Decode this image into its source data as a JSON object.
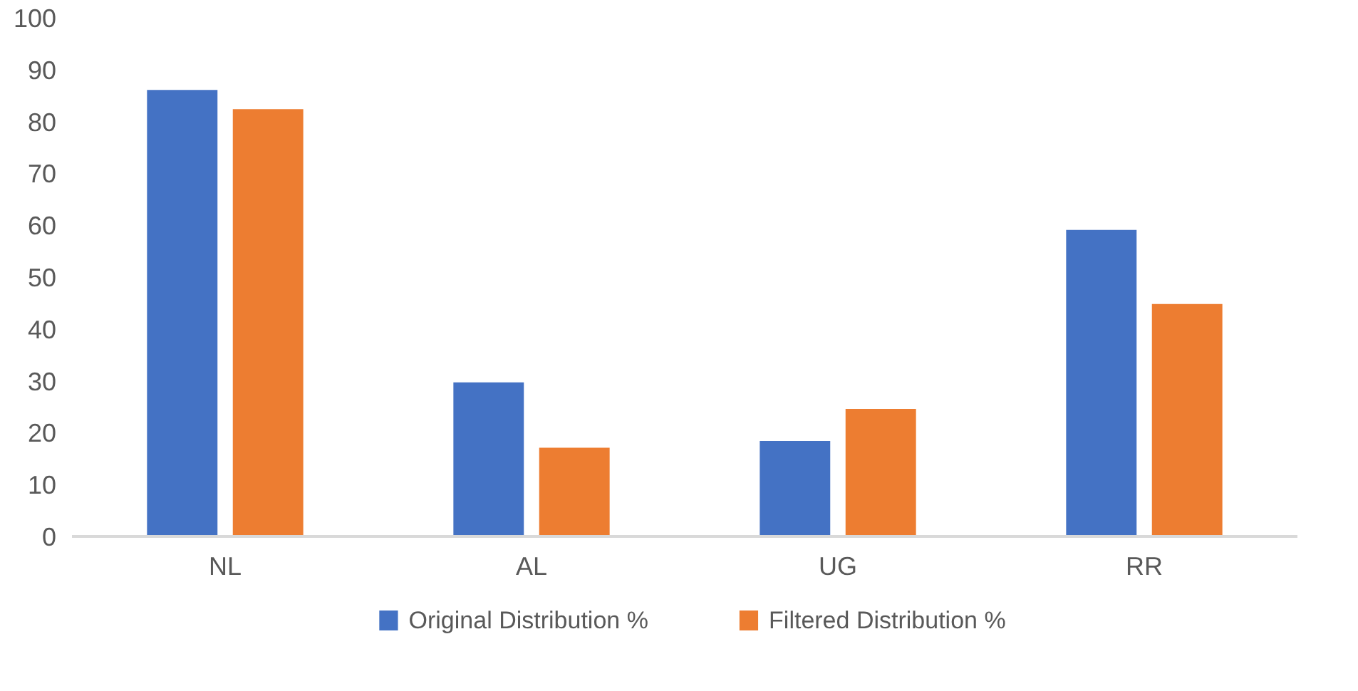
{
  "chart_data": {
    "type": "bar",
    "categories": [
      "NL",
      "AL",
      "UG",
      "RR"
    ],
    "series": [
      {
        "name": "Original Distribution %",
        "color": "#4472c4",
        "values": [
          86.1,
          29.7,
          18.4,
          59.1
        ]
      },
      {
        "name": "Filtered Distribution %",
        "color": "#ed7d31",
        "values": [
          82.4,
          17.1,
          24.6,
          44.8
        ]
      }
    ],
    "ylim": [
      0,
      100
    ],
    "yticks": [
      0,
      10,
      20,
      30,
      40,
      50,
      60,
      70,
      80,
      90,
      100
    ],
    "grid": false,
    "legend": "bottom"
  }
}
